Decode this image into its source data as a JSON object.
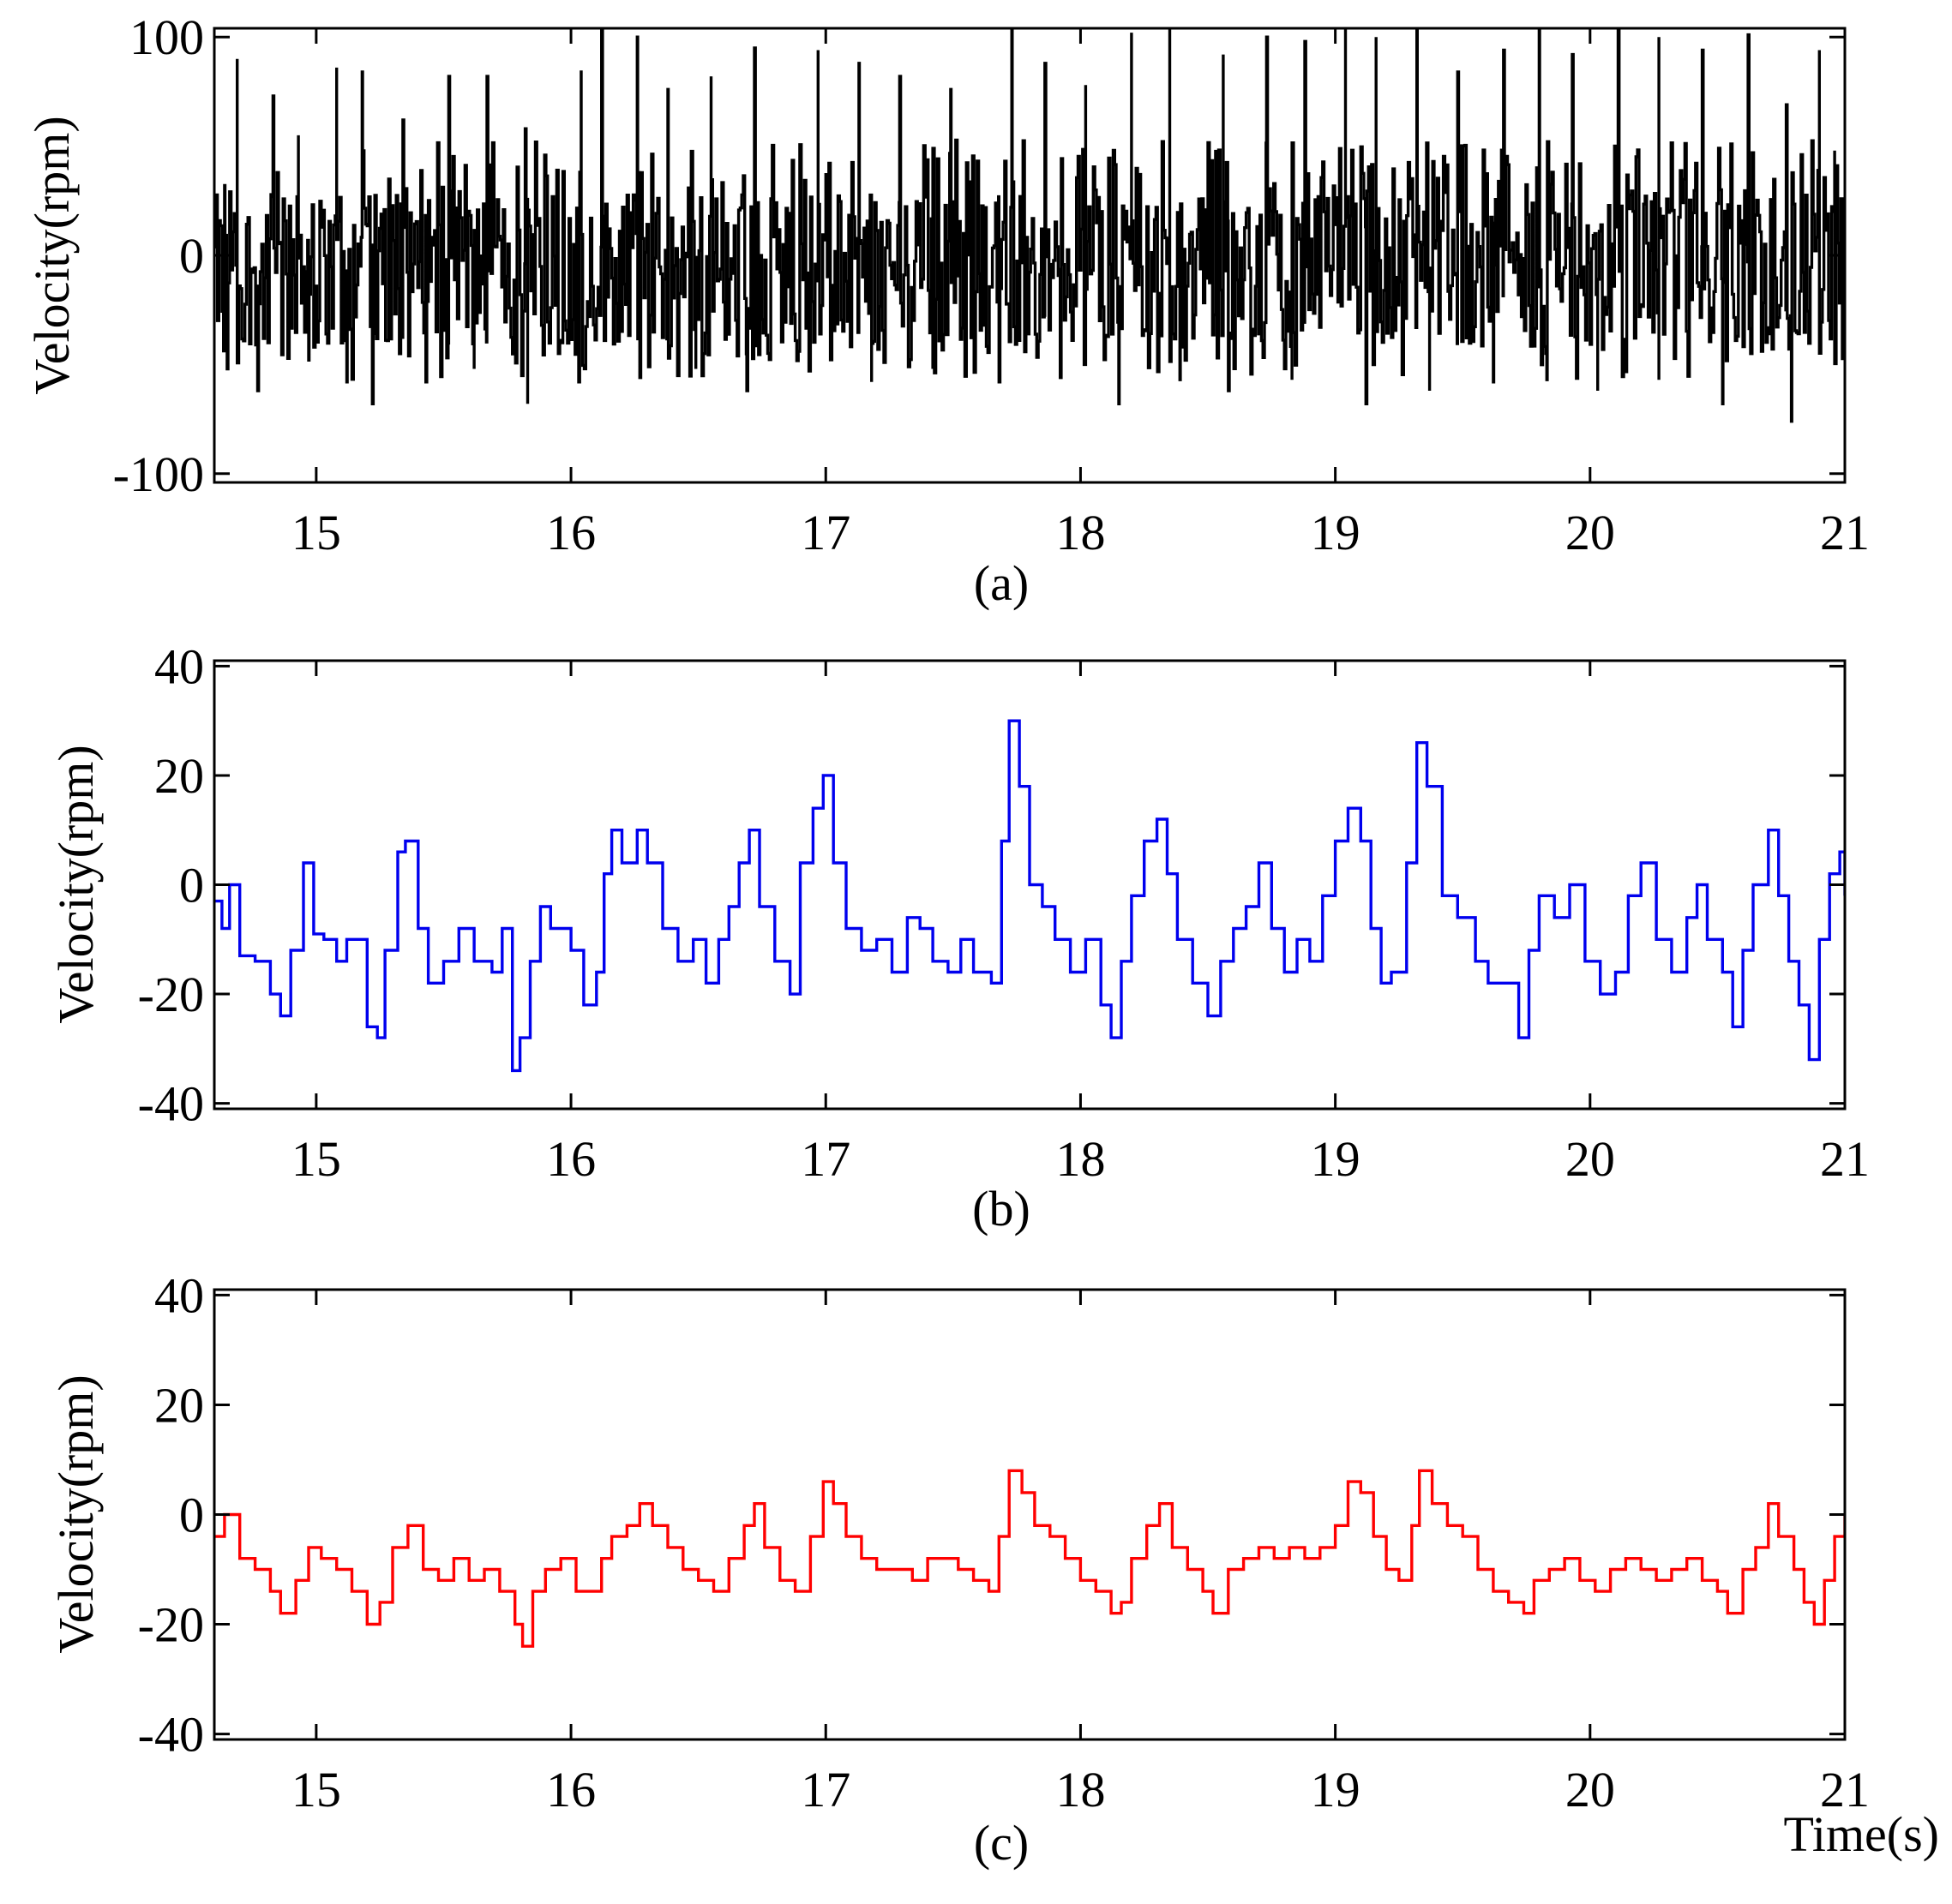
{
  "chart_data": [
    {
      "type": "line",
      "panel": "a",
      "caption": "(a)",
      "ylabel": "Velocity(rpm)",
      "xlabel": "",
      "xlim": [
        14.6,
        21.0
      ],
      "ylim": [
        -104,
        104
      ],
      "xticks": [
        15,
        16,
        17,
        18,
        19,
        20,
        21
      ],
      "yticks": [
        100,
        0,
        -100
      ],
      "color": "#000000",
      "style": "dense-stepped",
      "peaks": [
        [
          14.64,
          32
        ],
        [
          14.69,
          90
        ],
        [
          14.83,
          73
        ],
        [
          14.93,
          55
        ],
        [
          15.08,
          86
        ],
        [
          15.18,
          84
        ],
        [
          15.34,
          62
        ],
        [
          15.52,
          82
        ],
        [
          15.67,
          82
        ],
        [
          15.82,
          58
        ],
        [
          16.04,
          84
        ],
        [
          16.12,
          104
        ],
        [
          16.26,
          100
        ],
        [
          16.38,
          76
        ],
        [
          16.55,
          82
        ],
        [
          16.72,
          95
        ],
        [
          16.97,
          94
        ],
        [
          17.13,
          88
        ],
        [
          17.29,
          82
        ],
        [
          17.49,
          76
        ],
        [
          17.73,
          110
        ],
        [
          17.86,
          88
        ],
        [
          18.02,
          78
        ],
        [
          18.2,
          102
        ],
        [
          18.35,
          104
        ],
        [
          18.56,
          92
        ],
        [
          18.73,
          100
        ],
        [
          18.88,
          98
        ],
        [
          19.04,
          112
        ],
        [
          19.16,
          100
        ],
        [
          19.32,
          110
        ],
        [
          19.48,
          84
        ],
        [
          19.66,
          94
        ],
        [
          19.8,
          104
        ],
        [
          19.93,
          92
        ],
        [
          20.11,
          105
        ],
        [
          20.27,
          100
        ],
        [
          20.44,
          94
        ],
        [
          20.62,
          101
        ],
        [
          20.77,
          69
        ],
        [
          20.9,
          94
        ],
        [
          20.96,
          48
        ]
      ],
      "troughs": [
        [
          14.65,
          -52
        ],
        [
          14.77,
          -62
        ],
        [
          14.97,
          -48
        ],
        [
          15.12,
          -58
        ],
        [
          15.22,
          -68
        ],
        [
          15.43,
          -58
        ],
        [
          15.62,
          -52
        ],
        [
          15.83,
          -68
        ],
        [
          16.03,
          -58
        ],
        [
          16.27,
          -56
        ],
        [
          16.49,
          -52
        ],
        [
          16.69,
          -62
        ],
        [
          16.94,
          -52
        ],
        [
          17.18,
          -58
        ],
        [
          17.42,
          -52
        ],
        [
          17.68,
          -58
        ],
        [
          17.92,
          -56
        ],
        [
          18.15,
          -68
        ],
        [
          18.39,
          -57
        ],
        [
          18.58,
          -62
        ],
        [
          18.83,
          -57
        ],
        [
          19.12,
          -68
        ],
        [
          19.37,
          -62
        ],
        [
          19.62,
          -58
        ],
        [
          19.83,
          -57
        ],
        [
          20.03,
          -62
        ],
        [
          20.27,
          -57
        ],
        [
          20.52,
          -68
        ],
        [
          20.79,
          -76
        ],
        [
          20.99,
          -48
        ]
      ],
      "base_level": -7
    },
    {
      "type": "line",
      "panel": "b",
      "caption": "(b)",
      "ylabel": "Velocity(rpm)",
      "xlabel": "",
      "xlim": [
        14.6,
        21.0
      ],
      "ylim": [
        -41,
        41
      ],
      "xticks": [
        15,
        16,
        17,
        18,
        19,
        20,
        21
      ],
      "yticks": [
        40,
        20,
        0,
        -20,
        -40
      ],
      "color": "#0000ee",
      "points": [
        [
          14.6,
          -3
        ],
        [
          14.63,
          -8
        ],
        [
          14.66,
          0
        ],
        [
          14.7,
          -13
        ],
        [
          14.76,
          -14
        ],
        [
          14.82,
          -20
        ],
        [
          14.86,
          -24
        ],
        [
          14.9,
          -12
        ],
        [
          14.95,
          4
        ],
        [
          14.99,
          -9
        ],
        [
          15.03,
          -10
        ],
        [
          15.08,
          -14
        ],
        [
          15.12,
          -10
        ],
        [
          15.2,
          -26
        ],
        [
          15.24,
          -28
        ],
        [
          15.27,
          -12
        ],
        [
          15.32,
          6
        ],
        [
          15.35,
          8
        ],
        [
          15.4,
          -8
        ],
        [
          15.44,
          -18
        ],
        [
          15.5,
          -14
        ],
        [
          15.56,
          -8
        ],
        [
          15.62,
          -14
        ],
        [
          15.69,
          -16
        ],
        [
          15.73,
          -8
        ],
        [
          15.77,
          -34
        ],
        [
          15.8,
          -28
        ],
        [
          15.84,
          -14
        ],
        [
          15.88,
          -4
        ],
        [
          15.92,
          -8
        ],
        [
          16.0,
          -12
        ],
        [
          16.05,
          -22
        ],
        [
          16.1,
          -16
        ],
        [
          16.13,
          2
        ],
        [
          16.16,
          10
        ],
        [
          16.2,
          4
        ],
        [
          16.26,
          10
        ],
        [
          16.3,
          4
        ],
        [
          16.36,
          -8
        ],
        [
          16.42,
          -14
        ],
        [
          16.48,
          -10
        ],
        [
          16.53,
          -18
        ],
        [
          16.58,
          -10
        ],
        [
          16.62,
          -4
        ],
        [
          16.66,
          4
        ],
        [
          16.7,
          10
        ],
        [
          16.74,
          -4
        ],
        [
          16.8,
          -14
        ],
        [
          16.86,
          -20
        ],
        [
          16.9,
          4
        ],
        [
          16.95,
          14
        ],
        [
          16.99,
          20
        ],
        [
          17.03,
          4
        ],
        [
          17.08,
          -8
        ],
        [
          17.14,
          -12
        ],
        [
          17.2,
          -10
        ],
        [
          17.26,
          -16
        ],
        [
          17.32,
          -6
        ],
        [
          17.37,
          -8
        ],
        [
          17.42,
          -14
        ],
        [
          17.48,
          -16
        ],
        [
          17.53,
          -10
        ],
        [
          17.58,
          -16
        ],
        [
          17.65,
          -18
        ],
        [
          17.69,
          8
        ],
        [
          17.72,
          30
        ],
        [
          17.76,
          18
        ],
        [
          17.8,
          0
        ],
        [
          17.85,
          -4
        ],
        [
          17.9,
          -10
        ],
        [
          17.96,
          -16
        ],
        [
          18.02,
          -10
        ],
        [
          18.08,
          -22
        ],
        [
          18.12,
          -28
        ],
        [
          18.16,
          -14
        ],
        [
          18.2,
          -2
        ],
        [
          18.25,
          8
        ],
        [
          18.3,
          12
        ],
        [
          18.34,
          2
        ],
        [
          18.38,
          -10
        ],
        [
          18.44,
          -18
        ],
        [
          18.5,
          -24
        ],
        [
          18.55,
          -14
        ],
        [
          18.6,
          -8
        ],
        [
          18.65,
          -4
        ],
        [
          18.7,
          4
        ],
        [
          18.75,
          -8
        ],
        [
          18.8,
          -16
        ],
        [
          18.85,
          -10
        ],
        [
          18.9,
          -14
        ],
        [
          18.95,
          -2
        ],
        [
          19.0,
          8
        ],
        [
          19.05,
          14
        ],
        [
          19.1,
          8
        ],
        [
          19.14,
          -8
        ],
        [
          19.18,
          -18
        ],
        [
          19.22,
          -16
        ],
        [
          19.28,
          4
        ],
        [
          19.32,
          26
        ],
        [
          19.36,
          18
        ],
        [
          19.42,
          -2
        ],
        [
          19.48,
          -6
        ],
        [
          19.55,
          -14
        ],
        [
          19.6,
          -18
        ],
        [
          19.66,
          -18
        ],
        [
          19.72,
          -28
        ],
        [
          19.76,
          -12
        ],
        [
          19.8,
          -2
        ],
        [
          19.86,
          -6
        ],
        [
          19.92,
          0
        ],
        [
          19.98,
          -14
        ],
        [
          20.04,
          -20
        ],
        [
          20.1,
          -16
        ],
        [
          20.15,
          -2
        ],
        [
          20.2,
          4
        ],
        [
          20.26,
          -10
        ],
        [
          20.32,
          -16
        ],
        [
          20.38,
          -6
        ],
        [
          20.42,
          0
        ],
        [
          20.46,
          -10
        ],
        [
          20.52,
          -16
        ],
        [
          20.56,
          -26
        ],
        [
          20.6,
          -12
        ],
        [
          20.64,
          0
        ],
        [
          20.7,
          10
        ],
        [
          20.74,
          -2
        ],
        [
          20.78,
          -14
        ],
        [
          20.82,
          -22
        ],
        [
          20.86,
          -32
        ],
        [
          20.9,
          -10
        ],
        [
          20.94,
          2
        ],
        [
          20.98,
          6
        ],
        [
          21.0,
          -2
        ]
      ]
    },
    {
      "type": "line",
      "panel": "c",
      "caption": "(c)",
      "ylabel": "Velocity(rpm)",
      "xlabel": "Time(s)",
      "xlim": [
        14.6,
        21.0
      ],
      "ylim": [
        -41,
        41
      ],
      "xticks": [
        15,
        16,
        17,
        18,
        19,
        20,
        21
      ],
      "yticks": [
        40,
        20,
        0,
        -20,
        -40
      ],
      "color": "#ff0000",
      "points": [
        [
          14.6,
          -4
        ],
        [
          14.64,
          0
        ],
        [
          14.7,
          -8
        ],
        [
          14.76,
          -10
        ],
        [
          14.82,
          -14
        ],
        [
          14.86,
          -18
        ],
        [
          14.92,
          -12
        ],
        [
          14.97,
          -6
        ],
        [
          15.02,
          -8
        ],
        [
          15.08,
          -10
        ],
        [
          15.14,
          -14
        ],
        [
          15.2,
          -20
        ],
        [
          15.25,
          -16
        ],
        [
          15.3,
          -6
        ],
        [
          15.36,
          -2
        ],
        [
          15.42,
          -10
        ],
        [
          15.48,
          -12
        ],
        [
          15.54,
          -8
        ],
        [
          15.6,
          -12
        ],
        [
          15.66,
          -10
        ],
        [
          15.72,
          -14
        ],
        [
          15.78,
          -20
        ],
        [
          15.81,
          -24
        ],
        [
          15.85,
          -14
        ],
        [
          15.9,
          -10
        ],
        [
          15.96,
          -8
        ],
        [
          16.02,
          -14
        ],
        [
          16.08,
          -14
        ],
        [
          16.12,
          -8
        ],
        [
          16.16,
          -4
        ],
        [
          16.22,
          -2
        ],
        [
          16.27,
          2
        ],
        [
          16.32,
          -2
        ],
        [
          16.38,
          -6
        ],
        [
          16.44,
          -10
        ],
        [
          16.5,
          -12
        ],
        [
          16.56,
          -14
        ],
        [
          16.62,
          -8
        ],
        [
          16.68,
          -2
        ],
        [
          16.72,
          2
        ],
        [
          16.76,
          -6
        ],
        [
          16.82,
          -12
        ],
        [
          16.88,
          -14
        ],
        [
          16.94,
          -4
        ],
        [
          16.99,
          6
        ],
        [
          17.03,
          2
        ],
        [
          17.08,
          -4
        ],
        [
          17.14,
          -8
        ],
        [
          17.2,
          -10
        ],
        [
          17.28,
          -10
        ],
        [
          17.34,
          -12
        ],
        [
          17.4,
          -8
        ],
        [
          17.46,
          -8
        ],
        [
          17.52,
          -10
        ],
        [
          17.58,
          -12
        ],
        [
          17.64,
          -14
        ],
        [
          17.68,
          -4
        ],
        [
          17.72,
          8
        ],
        [
          17.77,
          4
        ],
        [
          17.82,
          -2
        ],
        [
          17.88,
          -4
        ],
        [
          17.94,
          -8
        ],
        [
          18.0,
          -12
        ],
        [
          18.06,
          -14
        ],
        [
          18.12,
          -18
        ],
        [
          18.16,
          -16
        ],
        [
          18.2,
          -8
        ],
        [
          18.26,
          -2
        ],
        [
          18.31,
          2
        ],
        [
          18.36,
          -6
        ],
        [
          18.42,
          -10
        ],
        [
          18.48,
          -14
        ],
        [
          18.52,
          -18
        ],
        [
          18.58,
          -10
        ],
        [
          18.64,
          -8
        ],
        [
          18.7,
          -6
        ],
        [
          18.76,
          -8
        ],
        [
          18.82,
          -6
        ],
        [
          18.88,
          -8
        ],
        [
          18.94,
          -6
        ],
        [
          19.0,
          -2
        ],
        [
          19.05,
          6
        ],
        [
          19.1,
          4
        ],
        [
          19.15,
          -4
        ],
        [
          19.2,
          -10
        ],
        [
          19.25,
          -12
        ],
        [
          19.3,
          -2
        ],
        [
          19.33,
          8
        ],
        [
          19.38,
          2
        ],
        [
          19.44,
          -2
        ],
        [
          19.5,
          -4
        ],
        [
          19.56,
          -10
        ],
        [
          19.62,
          -14
        ],
        [
          19.68,
          -16
        ],
        [
          19.74,
          -18
        ],
        [
          19.78,
          -12
        ],
        [
          19.84,
          -10
        ],
        [
          19.9,
          -8
        ],
        [
          19.96,
          -12
        ],
        [
          20.02,
          -14
        ],
        [
          20.08,
          -10
        ],
        [
          20.14,
          -8
        ],
        [
          20.2,
          -10
        ],
        [
          20.26,
          -12
        ],
        [
          20.32,
          -10
        ],
        [
          20.38,
          -8
        ],
        [
          20.44,
          -12
        ],
        [
          20.5,
          -14
        ],
        [
          20.54,
          -18
        ],
        [
          20.6,
          -10
        ],
        [
          20.65,
          -6
        ],
        [
          20.7,
          2
        ],
        [
          20.74,
          -4
        ],
        [
          20.8,
          -10
        ],
        [
          20.84,
          -16
        ],
        [
          20.88,
          -20
        ],
        [
          20.92,
          -12
        ],
        [
          20.96,
          -4
        ],
        [
          21.0,
          0
        ]
      ]
    }
  ]
}
